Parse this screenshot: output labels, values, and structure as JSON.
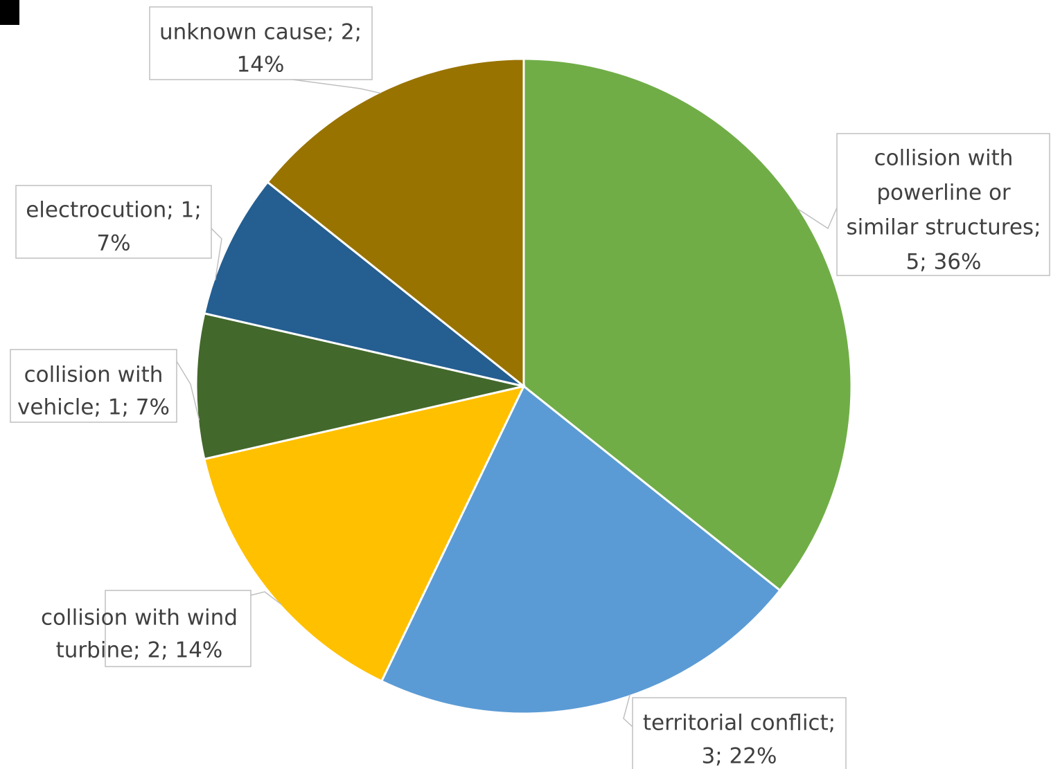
{
  "chart_data": {
    "type": "pie",
    "start_angle_deg": 0,
    "direction": "clockwise",
    "title": "",
    "slices": [
      {
        "label": "collision with powerline or similar structures",
        "value": 5,
        "percent": "36%",
        "color": "#70AD47",
        "label_lines": [
          "collision with",
          "powerline or",
          "similar structures;",
          "5; 36%"
        ]
      },
      {
        "label": "territorial conflict",
        "value": 3,
        "percent": "22%",
        "color": "#5B9BD5",
        "label_lines": [
          "territorial conflict;",
          "3; 22%"
        ]
      },
      {
        "label": "collision with wind turbine",
        "value": 2,
        "percent": "14%",
        "color": "#FFC000",
        "label_lines": [
          "collision with wind",
          "turbine; 2; 14%"
        ]
      },
      {
        "label": "collision with vehicle",
        "value": 1,
        "percent": "7%",
        "color": "#43682B",
        "label_lines": [
          "collision with",
          "vehicle; 1; 7%"
        ]
      },
      {
        "label": "electrocution",
        "value": 1,
        "percent": "7%",
        "color": "#255E91",
        "label_lines": [
          "electrocution; 1;",
          "7%"
        ]
      },
      {
        "label": "unknown cause",
        "value": 2,
        "percent": "14%",
        "color": "#997300",
        "label_lines": [
          "unknown cause; 2;",
          "14%"
        ]
      }
    ]
  }
}
